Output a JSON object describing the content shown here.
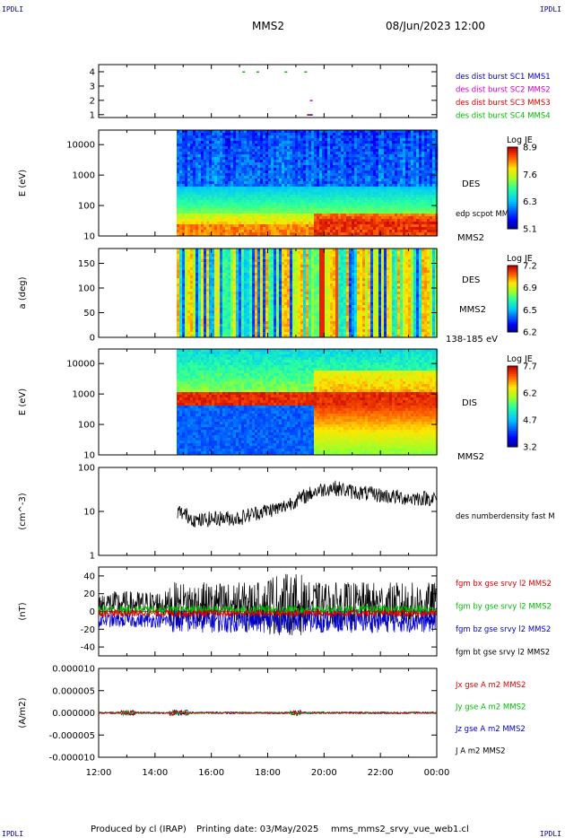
{
  "corners": {
    "tl": "IPDLI",
    "tr": "IPDLI",
    "bl": "IPDLI",
    "br": "IPDLI"
  },
  "header": {
    "mission": "MMS2",
    "datetime": "08/Jun/2023 12:00"
  },
  "footer": {
    "produced": "Produced by cl (IRAP)",
    "printing": "Printing date: 03/May/2025",
    "file": "mms_mms2_srvy_vue_web1.cl"
  },
  "colors": {
    "blue": "#0000cc",
    "magenta": "#cc00cc",
    "red": "#dd0000",
    "green": "#00bb00",
    "black": "#000000"
  },
  "chart_data": [
    {
      "type": "scatter",
      "id": "burst",
      "yticks": [
        "4",
        "3",
        "2",
        "1"
      ],
      "ylim": [
        0.8,
        4.5
      ],
      "xlim": [
        0,
        12
      ],
      "legend": [
        {
          "label": "des dist burst SC1 MMS1",
          "color": "#0000cc"
        },
        {
          "label": "des dist burst SC2 MMS2",
          "color": "#cc00cc"
        },
        {
          "label": "des dist burst SC3 MMS3",
          "color": "#dd0000"
        },
        {
          "label": "des dist burst SC4 MMS4",
          "color": "#00bb00"
        }
      ],
      "points": [
        {
          "x": 5.1,
          "y": 4,
          "series": 3
        },
        {
          "x": 5.6,
          "y": 4,
          "series": 3
        },
        {
          "x": 6.6,
          "y": 4,
          "series": 3
        },
        {
          "x": 7.3,
          "y": 4,
          "series": 3
        },
        {
          "x": 7.4,
          "y": 1,
          "series": 0
        },
        {
          "x": 7.5,
          "y": 1,
          "series": 0
        },
        {
          "x": 7.5,
          "y": 2,
          "series": 1
        },
        {
          "x": 7.4,
          "y": 1,
          "series": 2
        }
      ]
    },
    {
      "type": "heatmap",
      "id": "des-energy",
      "ylabel": "E (eV)",
      "yticks": [
        "10000",
        "1000",
        "100",
        "10"
      ],
      "side_label_1": "DES",
      "side_label_2": "edp scpot MMS2",
      "bottom_label": "MMS2",
      "colorbar": {
        "label": "Log JE",
        "ticks": [
          "8.9",
          "7.6",
          "6.3",
          "5.1"
        ]
      },
      "data_start_hour": 2.75
    },
    {
      "type": "heatmap",
      "id": "des-pitch",
      "ylabel": "a (deg)",
      "yticks": [
        "150",
        "100",
        "50",
        "0"
      ],
      "ylim": [
        0,
        180
      ],
      "side_label_1": "DES",
      "side_label_2": "MMS2",
      "bottom_label": "138-185 eV",
      "colorbar": {
        "label": "Log JE",
        "ticks": [
          "7.2",
          "6.9",
          "6.5",
          "6.2"
        ]
      },
      "data_start_hour": 2.75
    },
    {
      "type": "heatmap",
      "id": "dis-energy",
      "ylabel": "E (eV)",
      "yticks": [
        "10000",
        "1000",
        "100",
        "10"
      ],
      "side_label_1": "DIS",
      "bottom_label": "MMS2",
      "colorbar": {
        "label": "Log JE",
        "ticks": [
          "7.7",
          "6.2",
          "4.7",
          "3.2"
        ]
      },
      "data_start_hour": 2.75
    },
    {
      "type": "line",
      "id": "density",
      "ylabel": "(cm^-3)",
      "yscale": "log",
      "ylim": [
        1,
        100
      ],
      "yticks": [
        "100",
        "10",
        "1"
      ],
      "legend": [
        {
          "label": "des numberdensity fast M",
          "color": "#000000"
        }
      ],
      "x": [
        2.8,
        3.5,
        4.2,
        5.0,
        5.8,
        6.5,
        7.2,
        7.8,
        8.3,
        9.0,
        9.6,
        10.3,
        11.0,
        12.0
      ],
      "values": [
        10,
        6,
        7,
        7,
        10,
        12,
        20,
        30,
        35,
        28,
        25,
        22,
        20,
        20
      ]
    },
    {
      "type": "line",
      "id": "fgm",
      "ylabel": "(nT)",
      "ylim": [
        -50,
        50
      ],
      "yticks": [
        "40",
        "20",
        "0",
        "-20",
        "-40"
      ],
      "legend": [
        {
          "label": "fgm bx gse srvy l2 MMS2",
          "color": "#dd0000"
        },
        {
          "label": "fgm by gse srvy l2 MMS2",
          "color": "#00bb00"
        },
        {
          "label": "fgm bz gse srvy l2 MMS2",
          "color": "#0000cc"
        },
        {
          "label": "fgm bt gse srvy l2 MMS2",
          "color": "#000000"
        }
      ]
    },
    {
      "type": "line",
      "id": "current",
      "ylabel": "(A/m2)",
      "ylim": [
        -1e-05,
        1e-05
      ],
      "yticks": [
        "0.000010",
        "0.000005",
        "0.000000",
        "-0.000005",
        "-0.000010"
      ],
      "legend": [
        {
          "label": "Jx gse A m2 MMS2",
          "color": "#dd0000"
        },
        {
          "label": "Jy gse A m2 MMS2",
          "color": "#00bb00"
        },
        {
          "label": "Jz gse A m2 MMS2",
          "color": "#0000cc"
        },
        {
          "label": "J A m2 MMS2",
          "color": "#000000"
        }
      ]
    }
  ],
  "xaxis": {
    "ticks": [
      "12:00",
      "14:00",
      "16:00",
      "18:00",
      "20:00",
      "22:00",
      "00:00"
    ]
  }
}
